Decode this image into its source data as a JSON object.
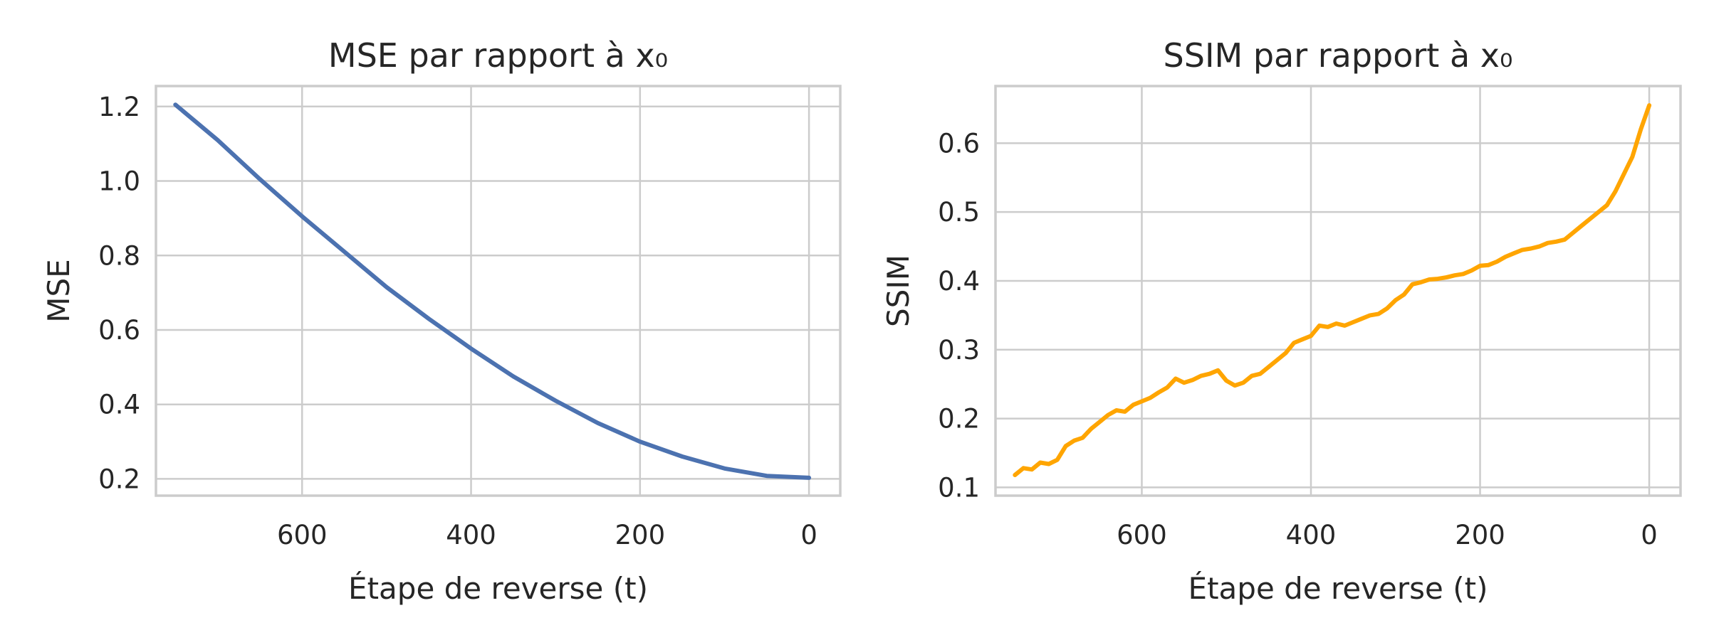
{
  "chart_data": [
    {
      "type": "line",
      "title": "MSE par rapport à x₀",
      "xlabel": "Étape de reverse (t)",
      "ylabel": "MSE",
      "x_inverted": true,
      "xlim": [
        773,
        -37
      ],
      "ylim": [
        0.155,
        1.255
      ],
      "xticks": [
        600,
        400,
        200,
        0
      ],
      "yticks": [
        0.2,
        0.4,
        0.6,
        0.8,
        1.0,
        1.2
      ],
      "ytick_labels": [
        "0.2",
        "0.4",
        "0.6",
        "0.8",
        "1.0",
        "1.2"
      ],
      "xtick_labels": [
        "600",
        "400",
        "200",
        "0"
      ],
      "grid": true,
      "color": "#4c72b0",
      "series": [
        {
          "x": [
            750,
            700,
            650,
            600,
            550,
            500,
            450,
            400,
            350,
            300,
            250,
            200,
            150,
            100,
            50,
            0
          ],
          "y": [
            1.205,
            1.11,
            1.005,
            0.905,
            0.81,
            0.715,
            0.63,
            0.55,
            0.475,
            0.41,
            0.35,
            0.3,
            0.26,
            0.228,
            0.208,
            0.203
          ]
        }
      ]
    },
    {
      "type": "line",
      "title": "SSIM par rapport à x₀",
      "xlabel": "Étape de reverse (t)",
      "ylabel": "SSIM",
      "x_inverted": true,
      "xlim": [
        773,
        -37
      ],
      "ylim": [
        0.088,
        0.683
      ],
      "xticks": [
        600,
        400,
        200,
        0
      ],
      "yticks": [
        0.1,
        0.2,
        0.3,
        0.4,
        0.5,
        0.6
      ],
      "ytick_labels": [
        "0.1",
        "0.2",
        "0.3",
        "0.4",
        "0.5",
        "0.6"
      ],
      "xtick_labels": [
        "600",
        "400",
        "200",
        "0"
      ],
      "grid": true,
      "color": "#ffa500",
      "series": [
        {
          "x": [
            750,
            740,
            730,
            720,
            710,
            700,
            690,
            680,
            670,
            660,
            650,
            640,
            630,
            620,
            610,
            600,
            590,
            580,
            570,
            560,
            550,
            540,
            530,
            520,
            510,
            500,
            490,
            480,
            470,
            460,
            450,
            440,
            430,
            420,
            410,
            400,
            390,
            380,
            370,
            360,
            350,
            340,
            330,
            320,
            310,
            300,
            290,
            280,
            270,
            260,
            250,
            240,
            230,
            220,
            210,
            200,
            190,
            180,
            170,
            160,
            150,
            140,
            130,
            120,
            110,
            100,
            90,
            80,
            70,
            60,
            50,
            40,
            30,
            20,
            10,
            0
          ],
          "y": [
            0.118,
            0.128,
            0.126,
            0.136,
            0.134,
            0.14,
            0.16,
            0.168,
            0.172,
            0.185,
            0.195,
            0.205,
            0.212,
            0.21,
            0.22,
            0.225,
            0.23,
            0.238,
            0.245,
            0.258,
            0.252,
            0.256,
            0.262,
            0.265,
            0.27,
            0.255,
            0.248,
            0.252,
            0.262,
            0.265,
            0.275,
            0.285,
            0.295,
            0.31,
            0.315,
            0.32,
            0.335,
            0.333,
            0.338,
            0.335,
            0.34,
            0.345,
            0.35,
            0.352,
            0.36,
            0.372,
            0.38,
            0.395,
            0.398,
            0.402,
            0.403,
            0.405,
            0.408,
            0.41,
            0.415,
            0.422,
            0.423,
            0.428,
            0.435,
            0.44,
            0.445,
            0.447,
            0.45,
            0.455,
            0.457,
            0.46,
            0.47,
            0.48,
            0.49,
            0.5,
            0.51,
            0.53,
            0.555,
            0.58,
            0.62,
            0.655
          ]
        }
      ]
    }
  ]
}
